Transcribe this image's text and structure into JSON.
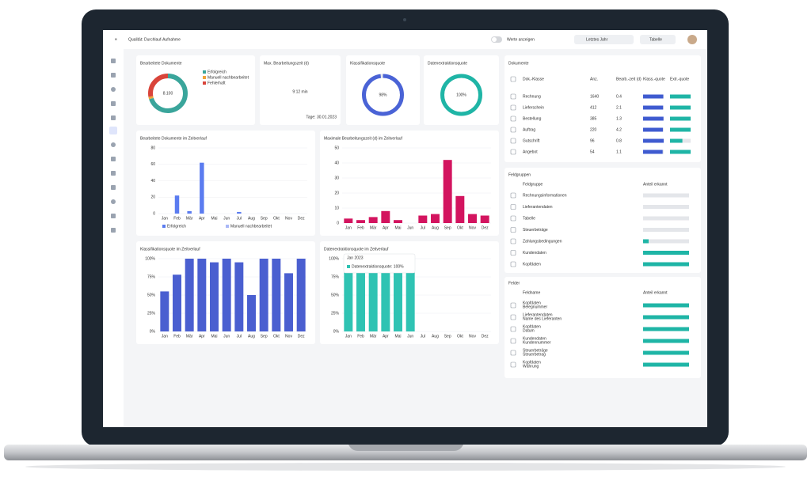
{
  "header": {
    "title": "Qualität: Durchlauf-Aufnahme",
    "toggle": "Werte anzeigen",
    "filter": "Letztes Jahr",
    "view": "Tabelle"
  },
  "kpis": {
    "donut": {
      "title": "Bearbeitete Dokumente",
      "center": "8.100",
      "series": [
        {
          "name": "Erfolgreich",
          "color": "#3aa59b",
          "value": 70
        },
        {
          "name": "Manuell nachbearbeitet",
          "color": "#f0a43a",
          "value": 2
        },
        {
          "name": "Fehlerhaft",
          "color": "#d9443a",
          "value": 28
        }
      ]
    },
    "time": {
      "title": "Max. Bearbeitungszeit (d)",
      "value": "9:12 min",
      "note": "Tage: 30.01.2023"
    },
    "rings": [
      {
        "title": "Klassifikationsquote",
        "value": 98,
        "value_label": "98%",
        "color": "#4a63d6"
      },
      {
        "title": "Datenextraktionsquote",
        "value": 100,
        "value_label": "100%",
        "color": "#1fb5a6"
      }
    ]
  },
  "charts": [
    {
      "title": "Bearbeitete Dokumente im Zeitverlauf",
      "color": "#5b7cf0",
      "categories": [
        "Jan",
        "Feb",
        "Mär",
        "Apr",
        "Mai",
        "Jun",
        "Jul",
        "Aug",
        "Sep",
        "Okt",
        "Nov",
        "Dez"
      ],
      "values": [
        0,
        22,
        3,
        62,
        0,
        0,
        2,
        0,
        0,
        0,
        0,
        0
      ],
      "ylim": [
        0,
        80
      ],
      "yticks": [
        0,
        20,
        40,
        60,
        80
      ],
      "legend": [
        "Erfolgreich",
        "Manuell nachbearbeitet"
      ]
    },
    {
      "title": "Maximale Bearbeitungszeit (d) im Zeitverlauf",
      "color": "#d3145f",
      "categories": [
        "Jan",
        "Feb",
        "Mär",
        "Apr",
        "Mai",
        "Jun",
        "Jul",
        "Aug",
        "Sep",
        "Okt",
        "Nov",
        "Dez"
      ],
      "values": [
        3,
        2,
        4,
        8,
        2,
        0,
        5,
        6,
        42,
        18,
        6,
        5
      ],
      "ylim": [
        0,
        50
      ],
      "yticks": [
        0,
        10,
        20,
        30,
        40,
        50
      ]
    },
    {
      "title": "Klassifikationsquote im Zeitverlauf",
      "color": "#4a5fd0",
      "categories": [
        "Jan",
        "Feb",
        "Mär",
        "Apr",
        "Mai",
        "Jun",
        "Jul",
        "Aug",
        "Sep",
        "Okt",
        "Nov",
        "Dez"
      ],
      "values": [
        55,
        78,
        100,
        100,
        95,
        100,
        95,
        50,
        100,
        100,
        80,
        100
      ],
      "ylim": [
        0,
        100
      ],
      "yticks": [
        {
          "value": 0,
          "label": "0%"
        },
        {
          "value": 25,
          "label": "25%"
        },
        {
          "value": 50,
          "label": "50%"
        },
        {
          "value": 75,
          "label": "75%"
        },
        {
          "value": 100,
          "label": "100%"
        }
      ]
    },
    {
      "title": "Datenextraktionsquote im Zeitverlauf",
      "color": "#2fc3b3",
      "categories": [
        "Jan",
        "Feb",
        "Mär",
        "Apr",
        "Mai",
        "Jun",
        "Jul",
        "Aug",
        "Sep",
        "Okt",
        "Nov",
        "Dez"
      ],
      "values": [
        100,
        100,
        100,
        100,
        100,
        100,
        null,
        null,
        null,
        null,
        null,
        null
      ],
      "ylim": [
        0,
        100
      ],
      "yticks": [
        {
          "value": 0,
          "label": "0%"
        },
        {
          "value": 25,
          "label": "25%"
        },
        {
          "value": 50,
          "label": "50%"
        },
        {
          "value": 75,
          "label": "75%"
        },
        {
          "value": 100,
          "label": "100%"
        }
      ],
      "tooltip": {
        "title": "Jan 2023",
        "text": "Datenextraktionsquote: 100%"
      }
    }
  ],
  "documents": {
    "title": "Dokumente",
    "columns": [
      "Dok.-Klasse",
      "Anz.",
      "Bearb.-zeit (d)",
      "Klass.-quote",
      "Extr.-quote"
    ],
    "rows": [
      {
        "name": "Rechnung",
        "count": 1640,
        "time": 0.4,
        "klass": 98,
        "extr": 100
      },
      {
        "name": "Lieferschein",
        "count": 412,
        "time": 2.1,
        "klass": 97,
        "extr": 100
      },
      {
        "name": "Bestellung",
        "count": 385,
        "time": 1.3,
        "klass": 99,
        "extr": 100
      },
      {
        "name": "Auftrag",
        "count": 220,
        "time": 4.2,
        "klass": 96,
        "extr": 100
      },
      {
        "name": "Gutschrift",
        "count": 96,
        "time": 0.8,
        "klass": 100,
        "extr": 60
      },
      {
        "name": "Angebot",
        "count": 54,
        "time": 1.1,
        "klass": 95,
        "extr": 100
      }
    ]
  },
  "groups": {
    "title": "Feldgruppen",
    "columns": [
      "Feldgruppe",
      "Anteil erkannt"
    ],
    "rows": [
      {
        "name": "Rechnungsinformationen",
        "value": 0
      },
      {
        "name": "Lieferantendaten",
        "value": 0
      },
      {
        "name": "Tabelle",
        "value": 0
      },
      {
        "name": "Steuerbeträge",
        "value": 0
      },
      {
        "name": "Zahlungsbedingungen",
        "value": 12
      },
      {
        "name": "Kundendaten",
        "value": 100
      },
      {
        "name": "Kopfdaten",
        "value": 100
      }
    ]
  },
  "fields": {
    "title": "Felder",
    "columns": [
      "Feldname",
      "Anteil erkannt"
    ],
    "rows": [
      {
        "group": "Kopfdaten",
        "name": "Belegnummer",
        "value": 100
      },
      {
        "group": "Lieferantendaten",
        "name": "Name des Lieferanten",
        "value": 100
      },
      {
        "group": "Kopfdaten",
        "name": "Datum",
        "value": 100
      },
      {
        "group": "Kundendaten",
        "name": "Kundennummer",
        "value": 100
      },
      {
        "group": "Steuerbeträge",
        "name": "Steuerbetrag",
        "value": 100
      },
      {
        "group": "Kopfdaten",
        "name": "Währung",
        "value": 100
      }
    ]
  }
}
